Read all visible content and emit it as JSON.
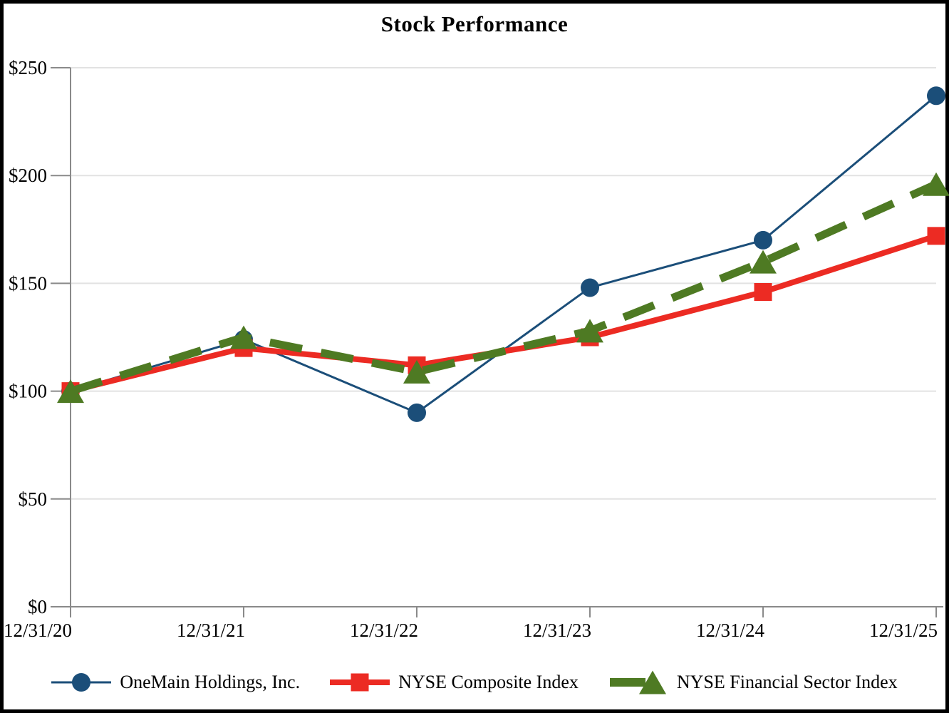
{
  "chart_data": {
    "type": "line",
    "title": "Stock Performance",
    "x_categories": [
      "12/31/20",
      "12/31/21",
      "12/31/22",
      "12/31/23",
      "12/31/24",
      "12/31/25"
    ],
    "y_ticks": [
      0,
      50,
      100,
      150,
      200,
      250
    ],
    "y_tick_labels": [
      "$0",
      "$50",
      "$100",
      "$150",
      "$200",
      "$250"
    ],
    "ylim": [
      0,
      250
    ],
    "grid": "horizontal",
    "legend_position": "bottom",
    "series": [
      {
        "id": "onemain",
        "name": "OneMain Holdings, Inc.",
        "marker": "circle",
        "line_style": "solid",
        "line_width": 3,
        "color": "#1B4E79",
        "values": [
          100,
          124,
          90,
          148,
          170,
          237
        ]
      },
      {
        "id": "nyse-composite",
        "name": "NYSE Composite Index",
        "marker": "square",
        "line_style": "solid",
        "line_width": 8,
        "color": "#EC2B23",
        "values": [
          100,
          120,
          112,
          125,
          146,
          172
        ]
      },
      {
        "id": "nyse-financial",
        "name": "NYSE Financial Sector Index",
        "marker": "triangle",
        "line_style": "dashed",
        "line_width": 11,
        "color": "#4E7A23",
        "values": [
          100,
          125,
          109,
          128,
          160,
          196
        ]
      }
    ]
  },
  "colors": {
    "background": "#FFFFFF",
    "frame_border": "#000000",
    "axis": "#8A8A8A",
    "gridline": "#E2E2E2",
    "text": "#000000"
  }
}
